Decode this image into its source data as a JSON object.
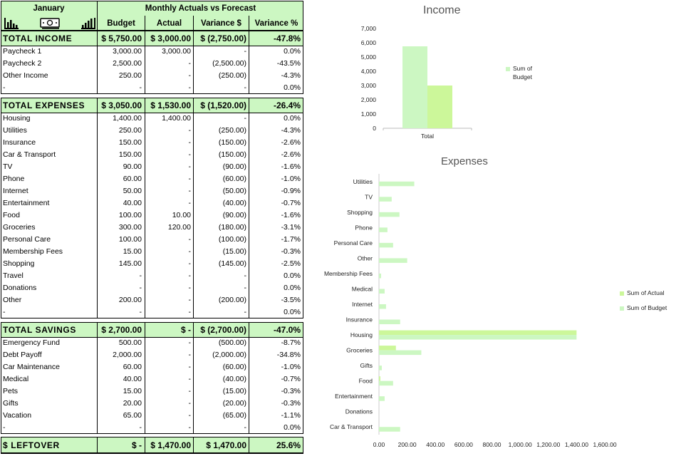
{
  "header": {
    "month": "January",
    "title": "Monthly Actuals vs Forecast",
    "columns": [
      "Budget",
      "Actual",
      "Variance $",
      "Variance %"
    ]
  },
  "income": {
    "label": "TOTAL INCOME",
    "total": [
      "$ 5,750.00",
      "$ 3,000.00",
      "$ (2,750.00)",
      "-47.8%"
    ],
    "rows": [
      [
        "Paycheck 1",
        "3,000.00",
        "3,000.00",
        "-",
        "0.0%"
      ],
      [
        "Paycheck 2",
        "2,500.00",
        "-",
        "(2,500.00)",
        "-43.5%"
      ],
      [
        "Other Income",
        "250.00",
        "-",
        "(250.00)",
        "-4.3%"
      ],
      [
        "-",
        "-",
        "-",
        "-",
        "0.0%"
      ]
    ]
  },
  "expenses": {
    "label": "TOTAL EXPENSES",
    "total": [
      "$ 3,050.00",
      "$ 1,530.00",
      "$ (1,520.00)",
      "-26.4%"
    ],
    "rows": [
      [
        "Housing",
        "1,400.00",
        "1,400.00",
        "-",
        "0.0%"
      ],
      [
        "Utilities",
        "250.00",
        "-",
        "(250.00)",
        "-4.3%"
      ],
      [
        "Insurance",
        "150.00",
        "-",
        "(150.00)",
        "-2.6%"
      ],
      [
        "Car & Transport",
        "150.00",
        "-",
        "(150.00)",
        "-2.6%"
      ],
      [
        "TV",
        "90.00",
        "-",
        "(90.00)",
        "-1.6%"
      ],
      [
        "Phone",
        "60.00",
        "-",
        "(60.00)",
        "-1.0%"
      ],
      [
        "Internet",
        "50.00",
        "-",
        "(50.00)",
        "-0.9%"
      ],
      [
        "Entertainment",
        "40.00",
        "-",
        "(40.00)",
        "-0.7%"
      ],
      [
        "Food",
        "100.00",
        "10.00",
        "(90.00)",
        "-1.6%"
      ],
      [
        "Groceries",
        "300.00",
        "120.00",
        "(180.00)",
        "-3.1%"
      ],
      [
        "Personal Care",
        "100.00",
        "-",
        "(100.00)",
        "-1.7%"
      ],
      [
        "Membership Fees",
        "15.00",
        "-",
        "(15.00)",
        "-0.3%"
      ],
      [
        "Shopping",
        "145.00",
        "-",
        "(145.00)",
        "-2.5%"
      ],
      [
        "Travel",
        "-",
        "-",
        "-",
        "0.0%"
      ],
      [
        "Donations",
        "-",
        "-",
        "-",
        "0.0%"
      ],
      [
        "Other",
        "200.00",
        "-",
        "(200.00)",
        "-3.5%"
      ],
      [
        "-",
        "-",
        "-",
        "-",
        "0.0%"
      ]
    ]
  },
  "savings": {
    "label": "TOTAL SAVINGS",
    "total": [
      "$ 2,700.00",
      "$ -",
      "$ (2,700.00)",
      "-47.0%"
    ],
    "rows": [
      [
        "Emergency Fund",
        "500.00",
        "-",
        "(500.00)",
        "-8.7%"
      ],
      [
        "Debt Payoff",
        "2,000.00",
        "-",
        "(2,000.00)",
        "-34.8%"
      ],
      [
        "Car Maintenance",
        "60.00",
        "-",
        "(60.00)",
        "-1.0%"
      ],
      [
        "Medical",
        "40.00",
        "-",
        "(40.00)",
        "-0.7%"
      ],
      [
        "Pets",
        "15.00",
        "-",
        "(15.00)",
        "-0.3%"
      ],
      [
        "Gifts",
        "20.00",
        "-",
        "(20.00)",
        "-0.3%"
      ],
      [
        "Vacation",
        "65.00",
        "-",
        "(65.00)",
        "-1.1%"
      ],
      [
        "-",
        "-",
        "-",
        "-",
        "0.0%"
      ]
    ]
  },
  "leftover": {
    "label": "$ LEFTOVER",
    "total": [
      "$ -",
      "$ 1,470.00",
      "$ 1,470.00",
      "25.6%"
    ]
  },
  "icons": [
    "bar-chart-icon",
    "cash-icon",
    "bar-chart-icon"
  ],
  "colors": {
    "header_green": "#ccf7c2",
    "budget_bar": "#ccf7c2",
    "actual_bar": "#ccf79a"
  },
  "chart_data": [
    {
      "type": "bar",
      "title": "Income",
      "categories": [
        "Total"
      ],
      "series": [
        {
          "name": "Sum of Budget",
          "values": [
            5750
          ]
        },
        {
          "name": "Sum of Actual",
          "values": [
            3000
          ]
        }
      ],
      "ylim": [
        0,
        7000
      ],
      "yticks": [
        "7,000",
        "6,000",
        "5,000",
        "4,000",
        "3,000",
        "2,000",
        "1,000",
        "0"
      ],
      "legend": [
        "Sum of Budget"
      ],
      "legend_position": "right"
    },
    {
      "type": "bar",
      "orientation": "horizontal",
      "title": "Expenses",
      "categories": [
        "Utilities",
        "TV",
        "Shopping",
        "Phone",
        "Personal Care",
        "Other",
        "Membership Fees",
        "Medical",
        "Internet",
        "Insurance",
        "Housing",
        "Groceries",
        "Gifts",
        "Food",
        "Entertainment",
        "Donations",
        "Car & Transport"
      ],
      "series": [
        {
          "name": "Sum of Actual",
          "values": [
            0,
            0,
            0,
            0,
            0,
            0,
            0,
            0,
            0,
            0,
            1400,
            120,
            0,
            10,
            0,
            0,
            0
          ]
        },
        {
          "name": "Sum of Budget",
          "values": [
            250,
            90,
            145,
            60,
            100,
            200,
            15,
            40,
            50,
            150,
            1400,
            300,
            20,
            100,
            40,
            0,
            150
          ]
        }
      ],
      "xlim": [
        0,
        1600
      ],
      "xticks": [
        "0.00",
        "200.00",
        "400.00",
        "600.00",
        "800.00",
        "1,000.00",
        "1,200.00",
        "1,400.00",
        "1,600.00"
      ],
      "legend_position": "right"
    }
  ]
}
